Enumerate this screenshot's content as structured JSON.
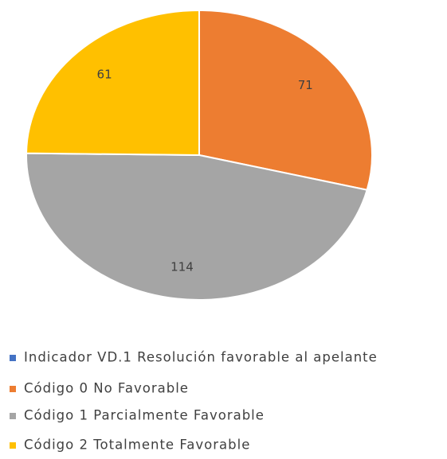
{
  "chart_data": {
    "type": "pie",
    "categories": [
      "Indicador VD.1 Resolución favorable al apelante",
      "Código 0 No Favorable",
      "Código 1 Parcialmente Favorable",
      "Código 2 Totalmente Favorable"
    ],
    "values": [
      null,
      71,
      114,
      61
    ],
    "colors": [
      "#4472c4",
      "#ed7d31",
      "#a5a5a5",
      "#ffc000"
    ],
    "legend": "bottom"
  }
}
